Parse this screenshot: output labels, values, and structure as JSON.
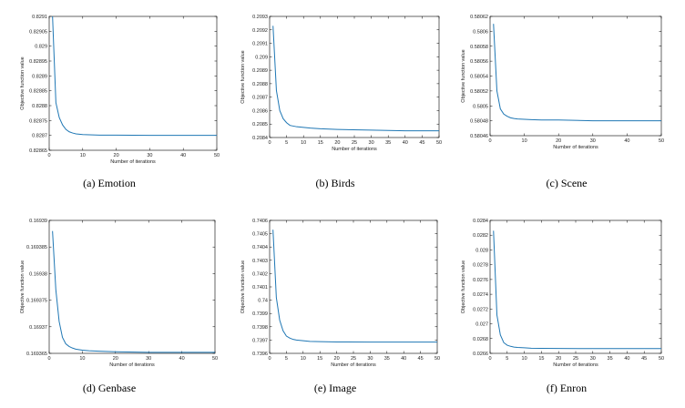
{
  "chart_data": [
    {
      "type": "line",
      "caption": "(a)  Emotion",
      "xlabel": "Number of iterations",
      "ylabel": "Objective function value",
      "xlim": [
        0,
        50
      ],
      "ylim": [
        0.82865,
        0.8291
      ],
      "xticks": [
        0,
        10,
        20,
        30,
        40,
        50
      ],
      "yticks": [
        0.82865,
        0.8287,
        0.82875,
        0.8288,
        0.82885,
        0.8289,
        0.82895,
        0.829,
        0.82905,
        0.8291
      ],
      "ytick_labels": [
        "0.82865",
        "0.8287",
        "0.82875",
        "0.8288",
        "0.82885",
        "0.8289",
        "0.82895",
        "0.829",
        "0.82905",
        "0.8291"
      ],
      "series": [
        {
          "x": [
            1,
            2,
            3,
            4,
            5,
            6,
            7,
            8,
            10,
            12,
            15,
            20,
            30,
            40,
            50
          ],
          "values": [
            0.8291,
            0.82881,
            0.82876,
            0.828735,
            0.82872,
            0.828712,
            0.828708,
            0.828705,
            0.828703,
            0.828702,
            0.828701,
            0.828701,
            0.8287,
            0.8287,
            0.8287
          ]
        }
      ]
    },
    {
      "type": "line",
      "caption": "(b)  Birds",
      "xlabel": "Number of iterations",
      "ylabel": "Objective function value",
      "xlim": [
        0,
        50
      ],
      "ylim": [
        0.2084,
        0.2093
      ],
      "xticks": [
        0,
        5,
        10,
        15,
        20,
        25,
        30,
        35,
        40,
        45,
        50
      ],
      "yticks": [
        0.2084,
        0.2085,
        0.2086,
        0.2087,
        0.2088,
        0.2089,
        0.209,
        0.2091,
        0.2092,
        0.2093
      ],
      "ytick_labels": [
        "0.2084",
        "0.2085",
        "0.2086",
        "0.2087",
        "0.2088",
        "0.2089",
        "0.209",
        "0.2091",
        "0.2092",
        "0.2093"
      ],
      "series": [
        {
          "x": [
            1,
            2,
            3,
            4,
            5,
            6,
            7,
            8,
            10,
            12,
            15,
            20,
            30,
            40,
            50
          ],
          "values": [
            0.20923,
            0.20875,
            0.2086,
            0.20854,
            0.20851,
            0.20849,
            0.208485,
            0.20848,
            0.208475,
            0.20847,
            0.208465,
            0.20846,
            0.208455,
            0.20845,
            0.20845
          ]
        }
      ]
    },
    {
      "type": "line",
      "caption": "(c)  Scene",
      "xlabel": "Number of iterations",
      "ylabel": "Objective function value",
      "xlim": [
        0,
        50
      ],
      "ylim": [
        0.58046,
        0.58062
      ],
      "xticks": [
        0,
        10,
        20,
        30,
        40,
        50
      ],
      "yticks": [
        0.58046,
        0.58048,
        0.5805,
        0.58052,
        0.58054,
        0.58056,
        0.58058,
        0.5806,
        0.58062
      ],
      "ytick_labels": [
        "0.58046",
        "0.58048",
        "0.5805",
        "0.58052",
        "0.58054",
        "0.58056",
        "0.58058",
        "0.5806",
        "0.58062"
      ],
      "series": [
        {
          "x": [
            1,
            2,
            3,
            4,
            5,
            6,
            7,
            8,
            10,
            12,
            15,
            20,
            30,
            40,
            50
          ],
          "values": [
            0.58061,
            0.58052,
            0.580496,
            0.580489,
            0.580486,
            0.580484,
            0.580483,
            0.5804825,
            0.580482,
            0.5804815,
            0.580481,
            0.580481,
            0.58048,
            0.58048,
            0.58048
          ]
        }
      ]
    },
    {
      "type": "line",
      "caption": "(d)  Genbase",
      "xlabel": "Number of iterations",
      "ylabel": "Objective function value",
      "xlim": [
        0,
        50
      ],
      "ylim": [
        0.169365,
        0.16939
      ],
      "xticks": [
        0,
        10,
        20,
        30,
        40,
        50
      ],
      "yticks": [
        0.169365,
        0.16937,
        0.169375,
        0.16938,
        0.169385,
        0.16939
      ],
      "ytick_labels": [
        "0.169365",
        "0.16937",
        "0.169375",
        "0.16938",
        "0.169385",
        "0.16939"
      ],
      "series": [
        {
          "x": [
            1,
            2,
            3,
            4,
            5,
            6,
            7,
            8,
            10,
            12,
            15,
            20,
            30,
            40,
            50
          ],
          "values": [
            0.169388,
            0.169377,
            0.169371,
            0.169368,
            0.1693668,
            0.1693663,
            0.169366,
            0.1693658,
            0.1693656,
            0.1693655,
            0.1693654,
            0.1693653,
            0.1693652,
            0.1693652,
            0.1693652
          ]
        }
      ]
    },
    {
      "type": "line",
      "caption": "(e)  Image",
      "xlabel": "Number of iterations",
      "ylabel": "Objective function value",
      "xlim": [
        0,
        50
      ],
      "ylim": [
        0.7396,
        0.7406
      ],
      "xticks": [
        0,
        5,
        10,
        15,
        20,
        25,
        30,
        35,
        40,
        45,
        50
      ],
      "yticks": [
        0.7396,
        0.7397,
        0.7398,
        0.7399,
        0.74,
        0.7401,
        0.7402,
        0.7403,
        0.7404,
        0.7405,
        0.7406
      ],
      "ytick_labels": [
        "0.7396",
        "0.7397",
        "0.7398",
        "0.7399",
        "0.74",
        "0.7401",
        "0.7402",
        "0.7403",
        "0.7404",
        "0.7405",
        "0.7406"
      ],
      "series": [
        {
          "x": [
            1,
            2,
            3,
            4,
            5,
            6,
            7,
            8,
            10,
            12,
            15,
            20,
            30,
            40,
            50
          ],
          "values": [
            0.74053,
            0.74002,
            0.73985,
            0.73977,
            0.73973,
            0.739715,
            0.739705,
            0.7397,
            0.739695,
            0.73969,
            0.739688,
            0.739686,
            0.739685,
            0.739685,
            0.739685
          ]
        }
      ]
    },
    {
      "type": "line",
      "caption": "(f)  Enron",
      "xlabel": "Number of iterations",
      "ylabel": "Objective function value",
      "xlim": [
        0,
        50
      ],
      "ylim": [
        0.0266,
        0.0284
      ],
      "xticks": [
        0,
        5,
        10,
        15,
        20,
        25,
        30,
        35,
        40,
        45,
        50
      ],
      "yticks": [
        0.0266,
        0.0268,
        0.027,
        0.0272,
        0.0274,
        0.0276,
        0.0278,
        0.028,
        0.0282,
        0.0284
      ],
      "ytick_labels": [
        "0.0266",
        "0.0268",
        "0.027",
        "0.0272",
        "0.0274",
        "0.0276",
        "0.0278",
        "0.028",
        "0.0282",
        "0.0284"
      ],
      "series": [
        {
          "x": [
            1,
            2,
            3,
            4,
            5,
            6,
            7,
            8,
            10,
            12,
            15,
            20,
            30,
            40,
            50
          ],
          "values": [
            0.02826,
            0.02712,
            0.02685,
            0.026745,
            0.02671,
            0.026695,
            0.026685,
            0.02668,
            0.026675,
            0.02667,
            0.026668,
            0.026666,
            0.026665,
            0.026665,
            0.026665
          ]
        }
      ]
    }
  ],
  "colors": {
    "line": "#1f77b4",
    "axis": "#000000",
    "text": "#222222"
  }
}
